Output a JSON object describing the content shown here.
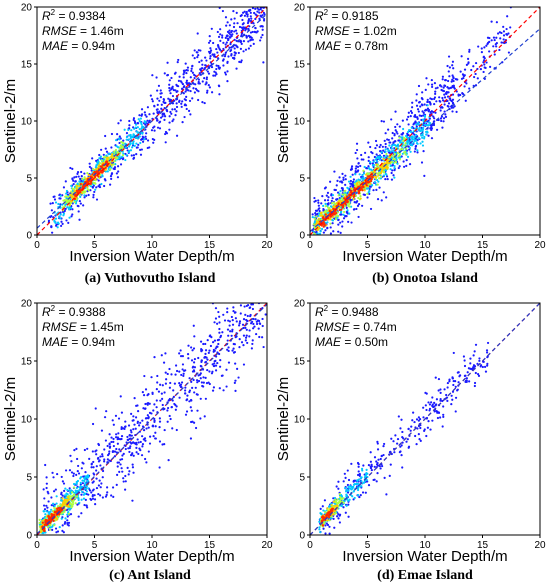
{
  "chart_data": [
    {
      "type": "scatter",
      "caption": "(a) Vuthovutho  Island",
      "xlabel": "Inversion Water Depth/m",
      "ylabel": "Sentinel-2/m",
      "xlim": [
        0,
        20
      ],
      "ylim": [
        0,
        20
      ],
      "xticks": [
        0,
        5,
        10,
        15,
        20
      ],
      "yticks": [
        0,
        5,
        10,
        15,
        20
      ],
      "stats": [
        {
          "label": "R",
          "sup": "2",
          "value": " = 0.9384"
        },
        {
          "label": "RMSE",
          "value": " = 1.46m"
        },
        {
          "label": "MAE",
          "value": " = 0.94m"
        }
      ],
      "lines": [
        {
          "role": "identity",
          "color": "#ff0000",
          "x": [
            0,
            20
          ],
          "y": [
            0,
            20
          ]
        },
        {
          "role": "fit",
          "color": "#1f3fcf",
          "x": [
            0,
            20
          ],
          "y": [
            0.6,
            19.4
          ]
        }
      ],
      "point_groups": [
        {
          "color": "#1a1aff",
          "slope": 0.98,
          "intercept": 0.3,
          "spread": 1.1,
          "x": [
            1.0,
            19.8
          ],
          "count": 600
        },
        {
          "color": "#1a1aff",
          "slope": 0.96,
          "intercept": 0.4,
          "spread": 1.6,
          "x": [
            10.0,
            19.9
          ],
          "count": 200
        },
        {
          "color": "#00c8ff",
          "slope": 0.98,
          "intercept": 0.3,
          "spread": 0.55,
          "x": [
            1.5,
            9.5
          ],
          "count": 320
        },
        {
          "color": "#aaff44",
          "slope": 0.98,
          "intercept": 0.3,
          "spread": 0.35,
          "x": [
            2.2,
            7.6
          ],
          "count": 180
        },
        {
          "color": "#ffcc00",
          "slope": 0.98,
          "intercept": 0.3,
          "spread": 0.25,
          "x": [
            2.8,
            6.8
          ],
          "count": 140
        },
        {
          "color": "#ff2a00",
          "slope": 0.98,
          "intercept": 0.3,
          "spread": 0.16,
          "x": [
            3.2,
            6.2
          ],
          "count": 110
        }
      ]
    },
    {
      "type": "scatter",
      "caption": "(b) Onotoa Island",
      "xlabel": "Inversion Water Depth/m",
      "ylabel": "Sentinel-2/m",
      "xlim": [
        0,
        20
      ],
      "ylim": [
        0,
        20
      ],
      "xticks": [
        0,
        5,
        10,
        15,
        20
      ],
      "yticks": [
        0,
        5,
        10,
        15,
        20
      ],
      "stats": [
        {
          "label": "R",
          "sup": "2",
          "value": " = 0.9185"
        },
        {
          "label": "RMSE",
          "value": " = 1.02m"
        },
        {
          "label": "MAE",
          "value": " = 0.78m"
        }
      ],
      "lines": [
        {
          "role": "identity",
          "color": "#ff0000",
          "x": [
            0,
            20
          ],
          "y": [
            0,
            20
          ]
        },
        {
          "role": "fit",
          "color": "#1f3fcf",
          "x": [
            0,
            20
          ],
          "y": [
            0.3,
            18.1
          ]
        }
      ],
      "point_groups": [
        {
          "color": "#1a1aff",
          "slope": 1.0,
          "intercept": 0.4,
          "spread": 1.3,
          "x": [
            0.2,
            12.5
          ],
          "count": 700
        },
        {
          "color": "#1a1aff",
          "slope": 1.0,
          "intercept": 0.5,
          "spread": 1.0,
          "x": [
            12.0,
            17.5
          ],
          "count": 120
        },
        {
          "color": "#00c8ff",
          "slope": 0.92,
          "intercept": 0.3,
          "spread": 0.6,
          "x": [
            0.2,
            10.5
          ],
          "count": 420
        },
        {
          "color": "#aaff44",
          "slope": 0.9,
          "intercept": 0.3,
          "spread": 0.4,
          "x": [
            0.3,
            8.5
          ],
          "count": 260
        },
        {
          "color": "#ffcc00",
          "slope": 0.9,
          "intercept": 0.3,
          "spread": 0.3,
          "x": [
            0.5,
            7.0
          ],
          "count": 200
        },
        {
          "color": "#ff2a00",
          "slope": 0.9,
          "intercept": 0.2,
          "spread": 0.2,
          "x": [
            0.8,
            5.5
          ],
          "count": 160
        }
      ]
    },
    {
      "type": "scatter",
      "caption": "(c) Ant Island",
      "xlabel": "Inversion Water Depth/m",
      "ylabel": "Sentinel-2/m",
      "xlim": [
        0,
        20
      ],
      "ylim": [
        0,
        20
      ],
      "xticks": [
        0,
        5,
        10,
        15,
        20
      ],
      "yticks": [
        0,
        5,
        10,
        15,
        20
      ],
      "stats": [
        {
          "label": "R",
          "sup": "2",
          "value": " = 0.9388"
        },
        {
          "label": "RMSE",
          "value": " = 1.45m"
        },
        {
          "label": "MAE",
          "value": " = 0.94m"
        }
      ],
      "lines": [
        {
          "role": "identity",
          "color": "#ff0000",
          "x": [
            0,
            20
          ],
          "y": [
            0,
            20
          ]
        },
        {
          "role": "fit",
          "color": "#1f3fcf",
          "x": [
            0,
            20
          ],
          "y": [
            0.1,
            19.9
          ]
        }
      ],
      "point_groups": [
        {
          "color": "#1a1aff",
          "slope": 1.0,
          "intercept": 0.2,
          "spread": 1.8,
          "x": [
            0.5,
            19.9
          ],
          "count": 800
        },
        {
          "color": "#00c8ff",
          "slope": 1.0,
          "intercept": 0.2,
          "spread": 0.5,
          "x": [
            0.2,
            4.5
          ],
          "count": 260
        },
        {
          "color": "#aaff44",
          "slope": 1.0,
          "intercept": 0.2,
          "spread": 0.35,
          "x": [
            0.2,
            3.5
          ],
          "count": 170
        },
        {
          "color": "#ffcc00",
          "slope": 1.0,
          "intercept": 0.2,
          "spread": 0.25,
          "x": [
            0.3,
            2.8
          ],
          "count": 130
        },
        {
          "color": "#ff2a00",
          "slope": 1.0,
          "intercept": 0.2,
          "spread": 0.18,
          "x": [
            0.4,
            2.2
          ],
          "count": 100
        }
      ]
    },
    {
      "type": "scatter",
      "caption": "(d) Emae Island",
      "xlabel": "Inversion Water Depth/m",
      "ylabel": "Sentinel-2/m",
      "xlim": [
        0,
        20
      ],
      "ylim": [
        0,
        20
      ],
      "xticks": [
        0,
        5,
        10,
        15,
        20
      ],
      "yticks": [
        0,
        5,
        10,
        15,
        20
      ],
      "stats": [
        {
          "label": "R",
          "sup": "2",
          "value": " = 0.9488"
        },
        {
          "label": "RMSE",
          "value": " = 0.74m"
        },
        {
          "label": "MAE",
          "value": " = 0.50m"
        }
      ],
      "lines": [
        {
          "role": "identity",
          "color": "#ff0000",
          "x": [
            0,
            20
          ],
          "y": [
            0,
            20
          ]
        },
        {
          "role": "fit",
          "color": "#1f3fcf",
          "x": [
            0,
            20
          ],
          "y": [
            0.0,
            20.0
          ]
        }
      ],
      "point_groups": [
        {
          "color": "#1a1aff",
          "slope": 1.0,
          "intercept": 0.2,
          "spread": 1.0,
          "x": [
            0.8,
            15.5
          ],
          "count": 330
        },
        {
          "color": "#00c8ff",
          "slope": 1.0,
          "intercept": 0.2,
          "spread": 0.4,
          "x": [
            0.8,
            5.0
          ],
          "count": 160
        },
        {
          "color": "#aaff44",
          "slope": 1.0,
          "intercept": 0.2,
          "spread": 0.28,
          "x": [
            0.9,
            3.0
          ],
          "count": 90
        },
        {
          "color": "#ffcc00",
          "slope": 1.0,
          "intercept": 0.2,
          "spread": 0.2,
          "x": [
            1.0,
            2.4
          ],
          "count": 70
        },
        {
          "color": "#ff2a00",
          "slope": 1.0,
          "intercept": 0.2,
          "spread": 0.15,
          "x": [
            1.0,
            2.0
          ],
          "count": 50
        }
      ]
    }
  ]
}
